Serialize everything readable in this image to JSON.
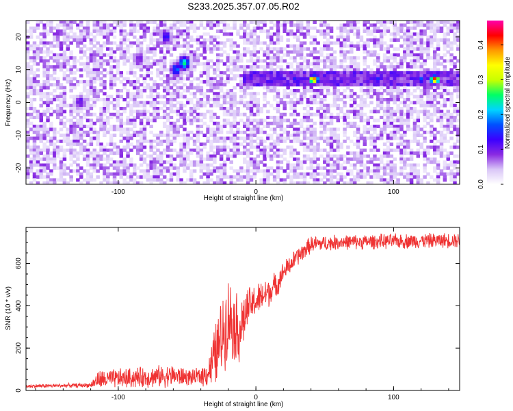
{
  "title": "S233.2025.357.07.05.R02",
  "colors": {
    "snr_line": "#ef3333",
    "axis": "#000000",
    "spectrogram_background": "#ffffff",
    "spectrogram_blob": "#7a22ee",
    "colormap_stops": [
      "#ffffff",
      "#d9c6f7",
      "#8a2be2",
      "#3b00ff",
      "#0050ff",
      "#00d5ff",
      "#00ff66",
      "#c8ff00",
      "#ffff00",
      "#ff9900",
      "#ff0000",
      "#ff00aa"
    ]
  },
  "chart_data": [
    {
      "type": "heatmap",
      "title": "S233.2025.357.07.05.R02",
      "xlabel": "Height of straight line (km)",
      "ylabel": "Frequency (Hz)",
      "xlim": [
        -167,
        148
      ],
      "ylim": [
        -25,
        25
      ],
      "x_ticks": [
        -100,
        0,
        100
      ],
      "y_ticks": [
        -20,
        -10,
        0,
        10,
        20
      ],
      "colorbar": {
        "label": "Normalized spectral amplitude",
        "range": [
          0.0,
          0.47
        ],
        "ticks": [
          "0.0",
          "0.1",
          "0.2",
          "0.3",
          "0.4"
        ],
        "tick_values": [
          0.0,
          0.1,
          0.2,
          0.3,
          0.4
        ]
      },
      "features": {
        "horizontal_band": {
          "frequency": 7,
          "x_start": -10,
          "x_end": 148,
          "peaks": [
            {
              "x": 42,
              "amplitude": 0.42
            },
            {
              "x": 130,
              "amplitude": 0.44
            },
            {
              "x": 88,
              "amplitude": 0.16
            },
            {
              "x": 120,
              "amplitude": 0.18
            },
            {
              "x": 28,
              "amplitude": 0.15
            }
          ]
        },
        "diagonal_streak": [
          {
            "x": -52,
            "y": 12,
            "amplitude": 0.26
          },
          {
            "x": -58,
            "y": 10,
            "amplitude": 0.2
          },
          {
            "x": -65,
            "y": 20,
            "amplitude": 0.15
          },
          {
            "x": -85,
            "y": 13,
            "amplitude": 0.12
          },
          {
            "x": -128,
            "y": 0,
            "amplitude": 0.14
          }
        ]
      }
    },
    {
      "type": "line",
      "xlabel": "Height of straight line (km)",
      "ylabel": "SNR (10 * v/v)",
      "xlim": [
        -167,
        148
      ],
      "ylim": [
        0,
        770
      ],
      "x_ticks": [
        -100,
        0,
        100
      ],
      "y_ticks": [
        0,
        200,
        400,
        600
      ],
      "series": [
        {
          "baseline": {
            "x": [
              -167,
              -120,
              -115,
              -60,
              -45,
              -35,
              -28,
              -20,
              -12,
              -5,
              2,
              10,
              15,
              20,
              30,
              40,
              60,
              148
            ],
            "y": [
              20,
              25,
              50,
              70,
              60,
              80,
              190,
              350,
              280,
              400,
              430,
              470,
              500,
              560,
              630,
              690,
              700,
              710
            ]
          },
          "noise_envelope": {
            "x": [
              -167,
              -120,
              -115,
              -60,
              -45,
              -35,
              -28,
              -20,
              -12,
              -5,
              2,
              10,
              15,
              20,
              30,
              40,
              60,
              148
            ],
            "amplitude": [
              10,
              12,
              50,
              60,
              40,
              70,
              200,
              220,
              180,
              100,
              90,
              80,
              70,
              55,
              50,
              45,
              40,
              40
            ]
          }
        }
      ]
    }
  ]
}
